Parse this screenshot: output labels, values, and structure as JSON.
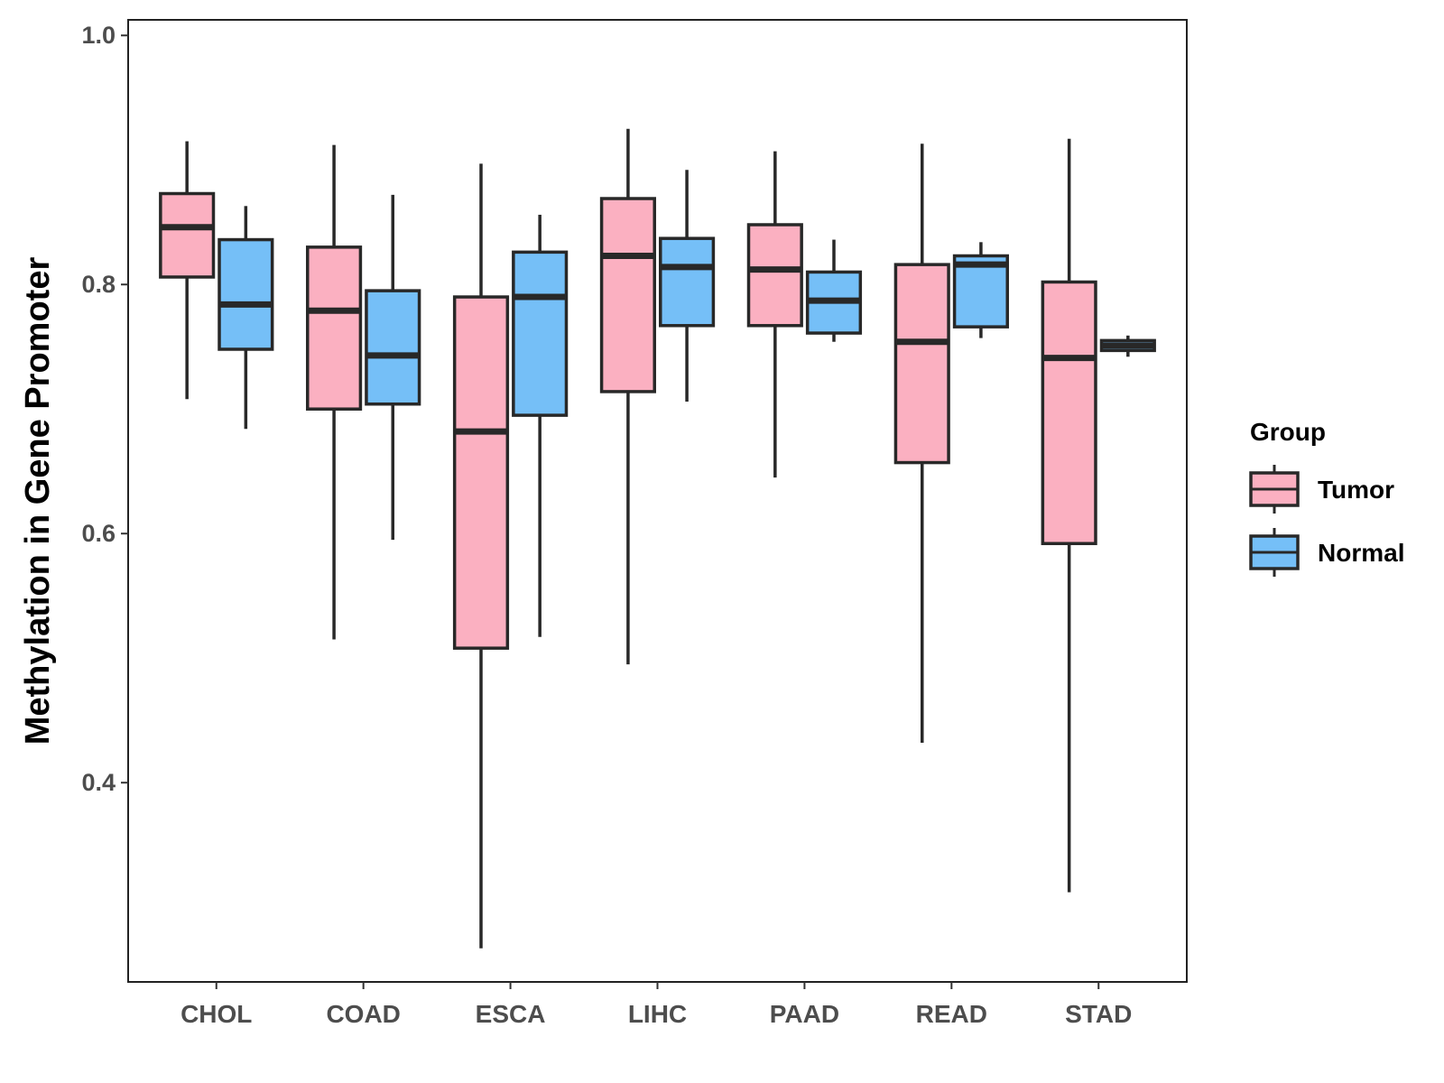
{
  "chart_data": {
    "type": "boxplot",
    "title": "",
    "xlabel": "",
    "ylabel": "Methylation in Gene Promoter",
    "ylim": [
      0.24,
      1.0125
    ],
    "yticks": [
      0.4,
      0.6,
      0.8,
      1.0
    ],
    "ytick_labels": [
      "0.4",
      "0.6",
      "0.8",
      "1.0"
    ],
    "categories": [
      "CHOL",
      "COAD",
      "ESCA",
      "LIHC",
      "PAAD",
      "READ",
      "STAD"
    ],
    "legend": {
      "title": "Group",
      "position": "right",
      "entries": [
        {
          "name": "Tumor",
          "color": "#FBB0C1"
        },
        {
          "name": "Normal",
          "color": "#75BFF7"
        }
      ]
    },
    "series": [
      {
        "name": "Tumor",
        "color": "#FBB0C1",
        "boxes": [
          {
            "category": "CHOL",
            "min": 0.708,
            "q1": 0.806,
            "median": 0.846,
            "q3": 0.873,
            "max": 0.915
          },
          {
            "category": "COAD",
            "min": 0.515,
            "q1": 0.7,
            "median": 0.779,
            "q3": 0.83,
            "max": 0.912
          },
          {
            "category": "ESCA",
            "min": 0.267,
            "q1": 0.508,
            "median": 0.682,
            "q3": 0.79,
            "max": 0.897
          },
          {
            "category": "LIHC",
            "min": 0.495,
            "q1": 0.714,
            "median": 0.823,
            "q3": 0.869,
            "max": 0.925
          },
          {
            "category": "PAAD",
            "min": 0.645,
            "q1": 0.767,
            "median": 0.812,
            "q3": 0.848,
            "max": 0.907
          },
          {
            "category": "READ",
            "min": 0.432,
            "q1": 0.657,
            "median": 0.754,
            "q3": 0.816,
            "max": 0.913
          },
          {
            "category": "STAD",
            "min": 0.312,
            "q1": 0.592,
            "median": 0.741,
            "q3": 0.802,
            "max": 0.917
          }
        ]
      },
      {
        "name": "Normal",
        "color": "#75BFF7",
        "boxes": [
          {
            "category": "CHOL",
            "min": 0.684,
            "q1": 0.748,
            "median": 0.784,
            "q3": 0.836,
            "max": 0.863
          },
          {
            "category": "COAD",
            "min": 0.595,
            "q1": 0.704,
            "median": 0.743,
            "q3": 0.795,
            "max": 0.872
          },
          {
            "category": "ESCA",
            "min": 0.517,
            "q1": 0.695,
            "median": 0.79,
            "q3": 0.826,
            "max": 0.856
          },
          {
            "category": "LIHC",
            "min": 0.706,
            "q1": 0.767,
            "median": 0.814,
            "q3": 0.837,
            "max": 0.892
          },
          {
            "category": "PAAD",
            "min": 0.754,
            "q1": 0.761,
            "median": 0.787,
            "q3": 0.81,
            "max": 0.836
          },
          {
            "category": "READ",
            "min": 0.757,
            "q1": 0.766,
            "median": 0.816,
            "q3": 0.823,
            "max": 0.834
          },
          {
            "category": "STAD",
            "min": 0.742,
            "q1": 0.747,
            "median": 0.751,
            "q3": 0.755,
            "max": 0.759
          }
        ]
      }
    ]
  }
}
